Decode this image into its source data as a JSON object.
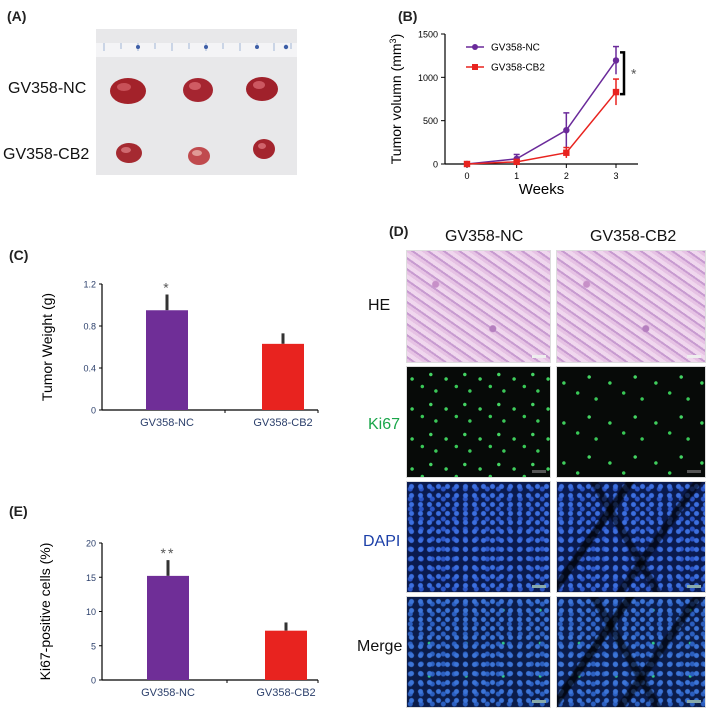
{
  "panels": {
    "a": "(A)",
    "b": "(B)",
    "c": "(C)",
    "d": "(D)",
    "e": "(E)"
  },
  "panel_a": {
    "rows": [
      "GV358-NC",
      "GV358-CB2"
    ]
  },
  "panel_d": {
    "columns": [
      "GV358-NC",
      "GV358-CB2"
    ],
    "rows": [
      "HE",
      "Ki67",
      "DAPI",
      "Merge"
    ],
    "row_colors": [
      "#111111",
      "#1aa64a",
      "#1b3fa8",
      "#111111"
    ]
  },
  "chart_data": [
    {
      "id": "B",
      "type": "line",
      "xlabel": "Weeks",
      "ylabel": "Tumor volumn (mm3)",
      "x": [
        0,
        1,
        2,
        3
      ],
      "ylim": [
        0,
        1500
      ],
      "yticks": [
        0,
        500,
        1000,
        1500
      ],
      "series": [
        {
          "name": "GV358-NC",
          "color": "#6a2a9a",
          "marker": "circle",
          "values": [
            0,
            60,
            390,
            1195
          ],
          "errors": [
            0,
            50,
            200,
            160
          ]
        },
        {
          "name": "GV358-CB2",
          "color": "#e8231f",
          "marker": "square",
          "values": [
            0,
            25,
            130,
            830
          ],
          "errors": [
            0,
            20,
            60,
            150
          ]
        }
      ],
      "annotation": "*",
      "legend": "top-left"
    },
    {
      "id": "C",
      "type": "bar",
      "ylabel": "Tumor Weight (g)",
      "categories": [
        "GV358-NC",
        "GV358-CB2"
      ],
      "values": [
        0.95,
        0.63
      ],
      "errors": [
        0.15,
        0.1
      ],
      "colors": [
        "#6f2e97",
        "#e8231f"
      ],
      "ylim": [
        0,
        1.2
      ],
      "yticks": [
        "0",
        "0.4",
        "0.8",
        "1.2"
      ],
      "annotations": [
        "*",
        ""
      ]
    },
    {
      "id": "E",
      "type": "bar",
      "ylabel": "Ki67-positive cells (%)",
      "categories": [
        "GV358-NC",
        "GV358-CB2"
      ],
      "values": [
        15.2,
        7.2
      ],
      "errors": [
        2.3,
        1.2
      ],
      "colors": [
        "#6f2e97",
        "#e8231f"
      ],
      "ylim": [
        0,
        20
      ],
      "yticks": [
        "0",
        "5",
        "10",
        "15",
        "20"
      ],
      "annotations": [
        "**",
        ""
      ]
    }
  ]
}
